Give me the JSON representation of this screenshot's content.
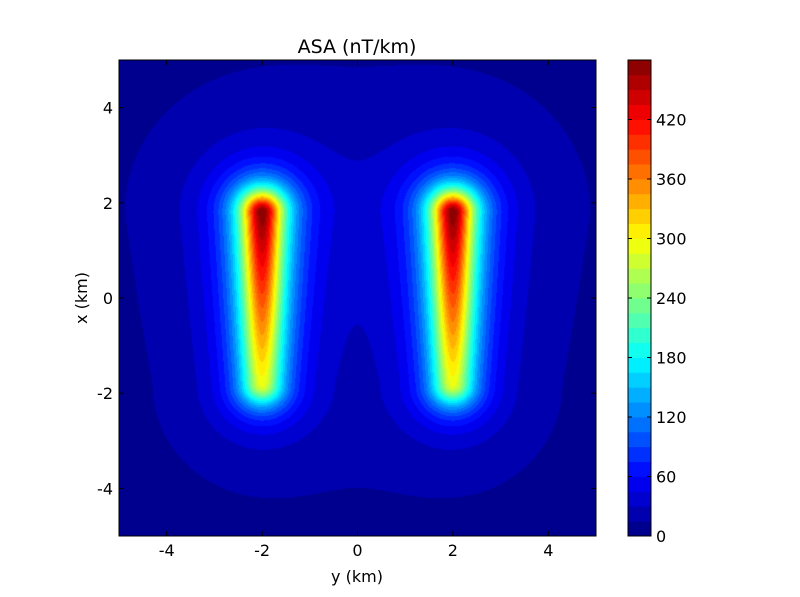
{
  "chart_data": {
    "type": "heatmap",
    "subtype": "filled-contour",
    "title": "ASA (nT/km)",
    "xlabel": "y (km)",
    "ylabel": "x (km)",
    "xlim": [
      -5,
      5
    ],
    "ylim": [
      -5,
      5
    ],
    "xticks": [
      -4,
      -2,
      0,
      2,
      4
    ],
    "yticks": [
      -4,
      -2,
      0,
      2,
      4
    ],
    "colormap": "jet",
    "colorbar": {
      "range": [
        0,
        480
      ],
      "ticks": [
        0,
        60,
        120,
        180,
        240,
        300,
        360,
        420
      ],
      "levels": 32
    },
    "sources": [
      {
        "y": -2,
        "x_top": 1.8,
        "x_bottom": -1.8,
        "peak_value": 470
      },
      {
        "y": 2,
        "x_top": 1.8,
        "x_bottom": -1.8,
        "peak_value": 470
      }
    ],
    "grid": false,
    "legend": "colorbar-right"
  }
}
